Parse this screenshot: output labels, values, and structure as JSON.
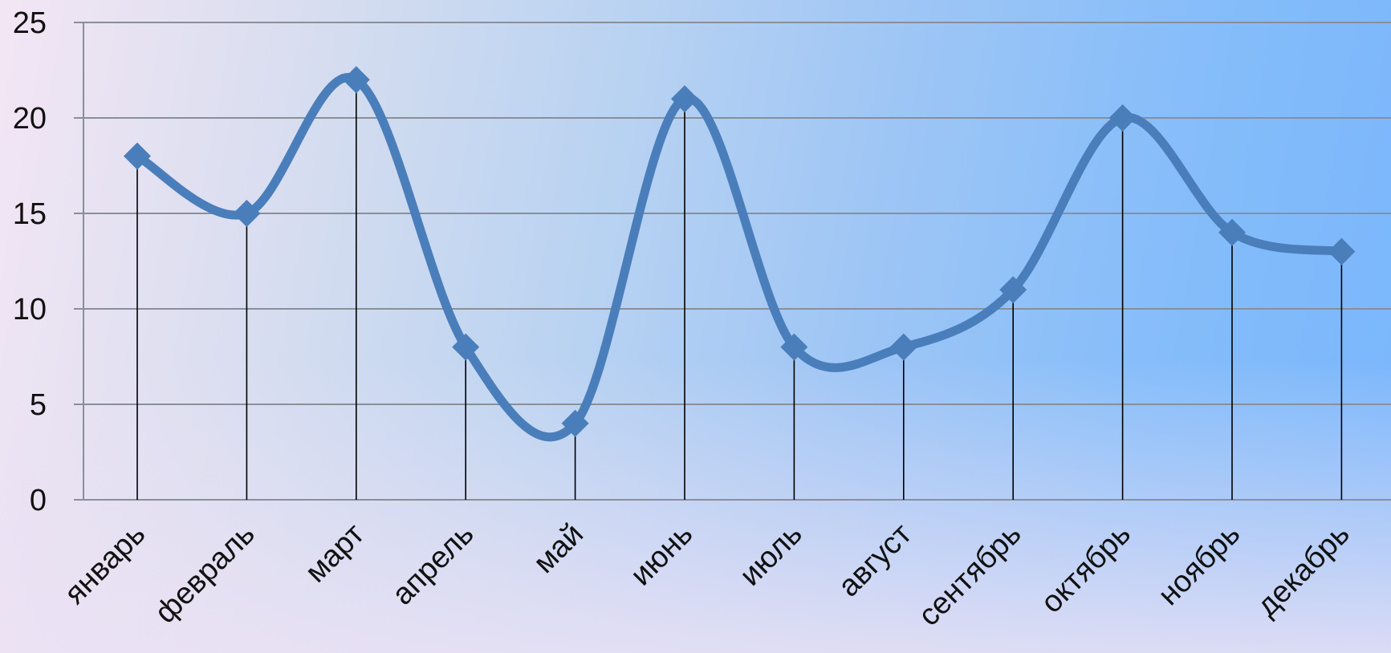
{
  "chart_data": {
    "type": "line",
    "title": "",
    "xlabel": "",
    "ylabel": "",
    "categories": [
      "январь",
      "февраль",
      "март",
      "апрель",
      "май",
      "июнь",
      "июль",
      "август",
      "сентябрь",
      "октябрь",
      "ноябрь",
      "декабрь"
    ],
    "series": [
      {
        "values": [
          18,
          15,
          22,
          8,
          4,
          21,
          8,
          8,
          11,
          20,
          14,
          13
        ],
        "color": "#4a7ebb",
        "marker": "diamond",
        "smooth": true
      }
    ],
    "ylim": [
      0,
      25
    ],
    "yticks": [
      "0",
      "5",
      "10",
      "15",
      "20",
      "25"
    ],
    "grid": true,
    "drop_lines": true,
    "legend": "none"
  }
}
